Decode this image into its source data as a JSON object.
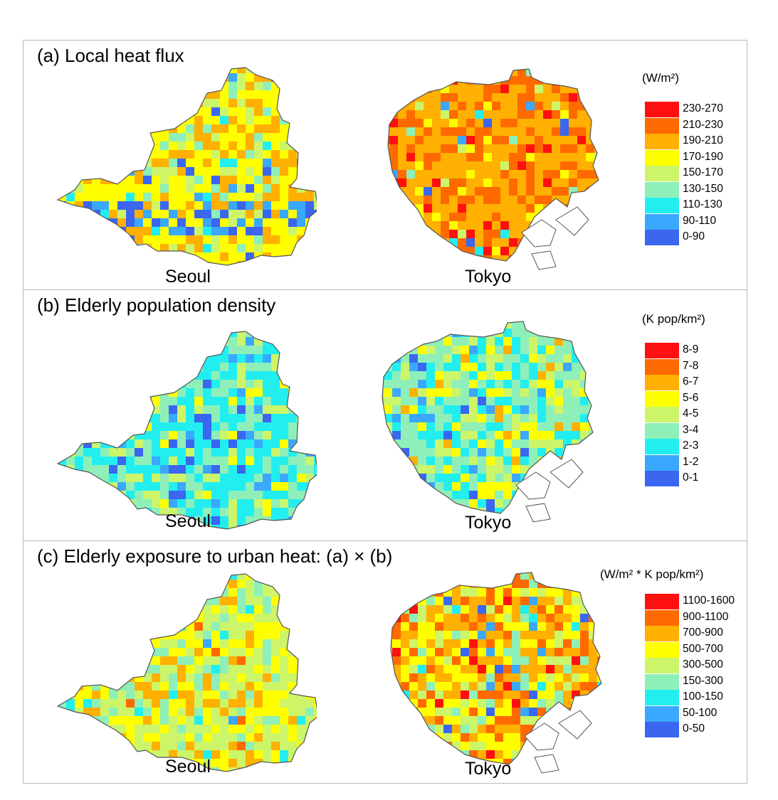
{
  "palette": [
    "#3a66f0",
    "#3aa8ff",
    "#22eef0",
    "#8ef0b8",
    "#ccf56a",
    "#ffff00",
    "#ffb000",
    "#ff6a00",
    "#ff1010"
  ],
  "outline_color": "#555555",
  "panels": [
    {
      "id": "a",
      "title": "(a) Local heat flux",
      "unit": "(W/m²)",
      "legend": [
        "230-270",
        "210-230",
        "190-210",
        "170-190",
        "150-170",
        "130-150",
        "110-130",
        "90-110",
        "0-90"
      ],
      "cities": [
        {
          "name": "Seoul",
          "pattern": "heat-flux-mostly-170-190-with-low-river-band"
        },
        {
          "name": "Tokyo",
          "pattern": "heat-flux-mostly-190-230-high-coast"
        }
      ]
    },
    {
      "id": "b",
      "title": "(b) Elderly population density",
      "unit": "(K pop/km²)",
      "legend": [
        "8-9",
        "7-8",
        "6-7",
        "5-6",
        "4-5",
        "3-4",
        "2-3",
        "1-2",
        "0-1"
      ],
      "cities": [
        {
          "name": "Seoul",
          "pattern": "density-mostly-2-4-low-center"
        },
        {
          "name": "Tokyo",
          "pattern": "density-mostly-3-5"
        }
      ]
    },
    {
      "id": "c",
      "title": "(c) Elderly exposure to urban heat: (a) × (b)",
      "unit": "(W/m² * K pop/km²)",
      "legend": [
        "1100-1600",
        "900-1100",
        "700-900",
        "500-700",
        "300-500",
        "150-300",
        "100-150",
        "50-100",
        "0-50"
      ],
      "cities": [
        {
          "name": "Seoul",
          "pattern": "exposure-mostly-300-700"
        },
        {
          "name": "Tokyo",
          "pattern": "exposure-mostly-500-1100"
        }
      ]
    }
  ]
}
